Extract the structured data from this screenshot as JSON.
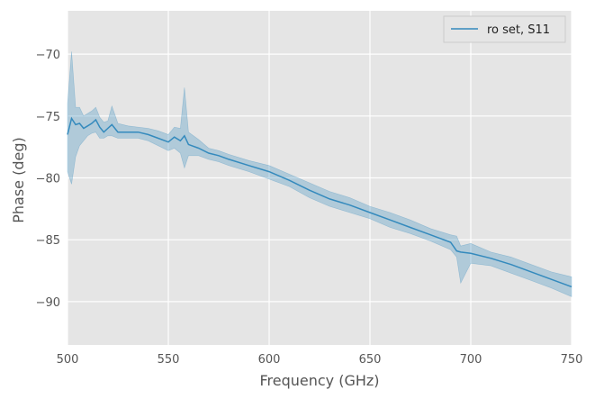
{
  "chart_data": {
    "type": "line",
    "title": "",
    "xlabel": "Frequency (GHz)",
    "ylabel": "Phase (deg)",
    "xlim": [
      500,
      750
    ],
    "ylim": [
      -93.5,
      -66.5
    ],
    "xticks": [
      500,
      550,
      600,
      650,
      700,
      750
    ],
    "xtick_labels": [
      "500",
      "550",
      "600",
      "650",
      "700",
      "750"
    ],
    "yticks": [
      -90,
      -85,
      -80,
      -75,
      -70
    ],
    "ytick_labels": [
      "−90",
      "−85",
      "−80",
      "−75",
      "−70"
    ],
    "grid": true,
    "legend": {
      "position": "top-right",
      "entries": [
        "ro set, S11"
      ]
    },
    "series": [
      {
        "name": "ro set, S11",
        "color": "#348abd",
        "band_color": "#348abd",
        "x": [
          500,
          502,
          504,
          506,
          508,
          510,
          512,
          514,
          516,
          518,
          520,
          522,
          525,
          530,
          535,
          540,
          545,
          550,
          553,
          556,
          558,
          560,
          565,
          570,
          575,
          580,
          590,
          600,
          610,
          620,
          630,
          640,
          650,
          660,
          670,
          680,
          690,
          693,
          695,
          700,
          710,
          720,
          730,
          740,
          750
        ],
        "y": [
          -76.5,
          -75.2,
          -75.7,
          -75.6,
          -76.0,
          -75.8,
          -75.6,
          -75.3,
          -75.9,
          -76.3,
          -76.0,
          -75.7,
          -76.3,
          -76.3,
          -76.3,
          -76.5,
          -76.8,
          -77.1,
          -76.7,
          -77.0,
          -76.6,
          -77.3,
          -77.6,
          -78.0,
          -78.2,
          -78.5,
          -79.0,
          -79.5,
          -80.2,
          -81.0,
          -81.7,
          -82.2,
          -82.8,
          -83.4,
          -84.0,
          -84.6,
          -85.2,
          -85.9,
          -86.0,
          -86.1,
          -86.5,
          -87.0,
          -87.6,
          -88.2,
          -88.8
        ],
        "lower": [
          -79.5,
          -80.5,
          -78.3,
          -77.4,
          -77.0,
          -76.6,
          -76.4,
          -76.3,
          -76.8,
          -76.8,
          -76.6,
          -76.6,
          -76.8,
          -76.8,
          -76.8,
          -77.0,
          -77.4,
          -77.8,
          -77.6,
          -78.0,
          -79.2,
          -78.2,
          -78.2,
          -78.5,
          -78.7,
          -79.0,
          -79.5,
          -80.1,
          -80.7,
          -81.6,
          -82.3,
          -82.8,
          -83.3,
          -84.0,
          -84.5,
          -85.1,
          -85.8,
          -86.4,
          -88.5,
          -86.9,
          -87.1,
          -87.7,
          -88.3,
          -88.9,
          -89.6
        ],
        "upper": [
          -74.0,
          -69.8,
          -74.3,
          -74.3,
          -75.0,
          -74.8,
          -74.6,
          -74.3,
          -75.1,
          -75.5,
          -75.4,
          -74.2,
          -75.6,
          -75.8,
          -75.9,
          -76.0,
          -76.2,
          -76.5,
          -75.9,
          -76.0,
          -72.7,
          -76.3,
          -76.9,
          -77.6,
          -77.8,
          -78.1,
          -78.6,
          -79.0,
          -79.7,
          -80.4,
          -81.1,
          -81.6,
          -82.3,
          -82.8,
          -83.4,
          -84.1,
          -84.6,
          -84.7,
          -85.5,
          -85.3,
          -86.0,
          -86.4,
          -87.0,
          -87.6,
          -88.0
        ]
      }
    ]
  }
}
